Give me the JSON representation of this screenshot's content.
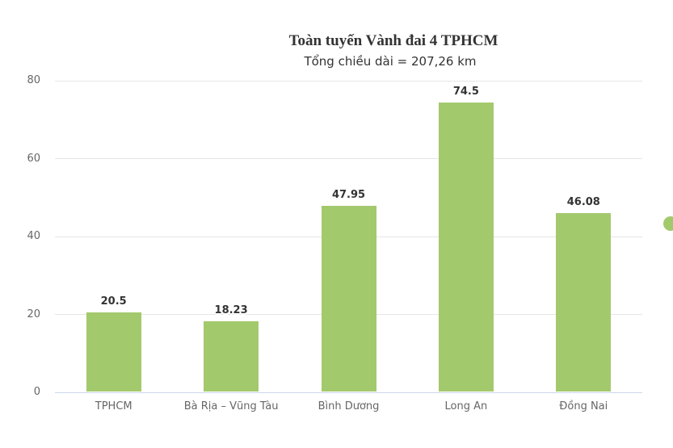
{
  "chart": {
    "title": "Toàn tuyến Vành đai 4 TPHCM",
    "subtitle": "Tổng chiều dài = 207,26 km"
  },
  "chart_data": {
    "type": "bar",
    "title": "Toàn tuyến Vành đai 4 TPHCM",
    "subtitle": "Tổng chiều dài = 207,26 km",
    "categories": [
      "TPHCM",
      "Bà Rịa – Vũng Tàu",
      "Bình Dương",
      "Long An",
      "Đồng Nai"
    ],
    "values": [
      20.5,
      18.23,
      47.95,
      74.5,
      46.08
    ],
    "value_labels": [
      "20.5",
      "18.23",
      "47.95",
      "74.5",
      "46.08"
    ],
    "yticks": [
      "0",
      "20",
      "40",
      "60",
      "80"
    ],
    "ytick_values": [
      0,
      20,
      40,
      60,
      80
    ],
    "ylim": [
      0,
      80
    ],
    "xlabel": "",
    "ylabel": "",
    "grid": true,
    "legend_position": "right-middle"
  },
  "colors": {
    "bar": "#a3c96d",
    "gridline": "#e6e6e6",
    "axis_line": "#ccd6eb",
    "tick_label": "#666666",
    "data_label": "#333333",
    "title": "#333333",
    "subtitle": "#333333",
    "legend_dot": "#a3c96d"
  }
}
